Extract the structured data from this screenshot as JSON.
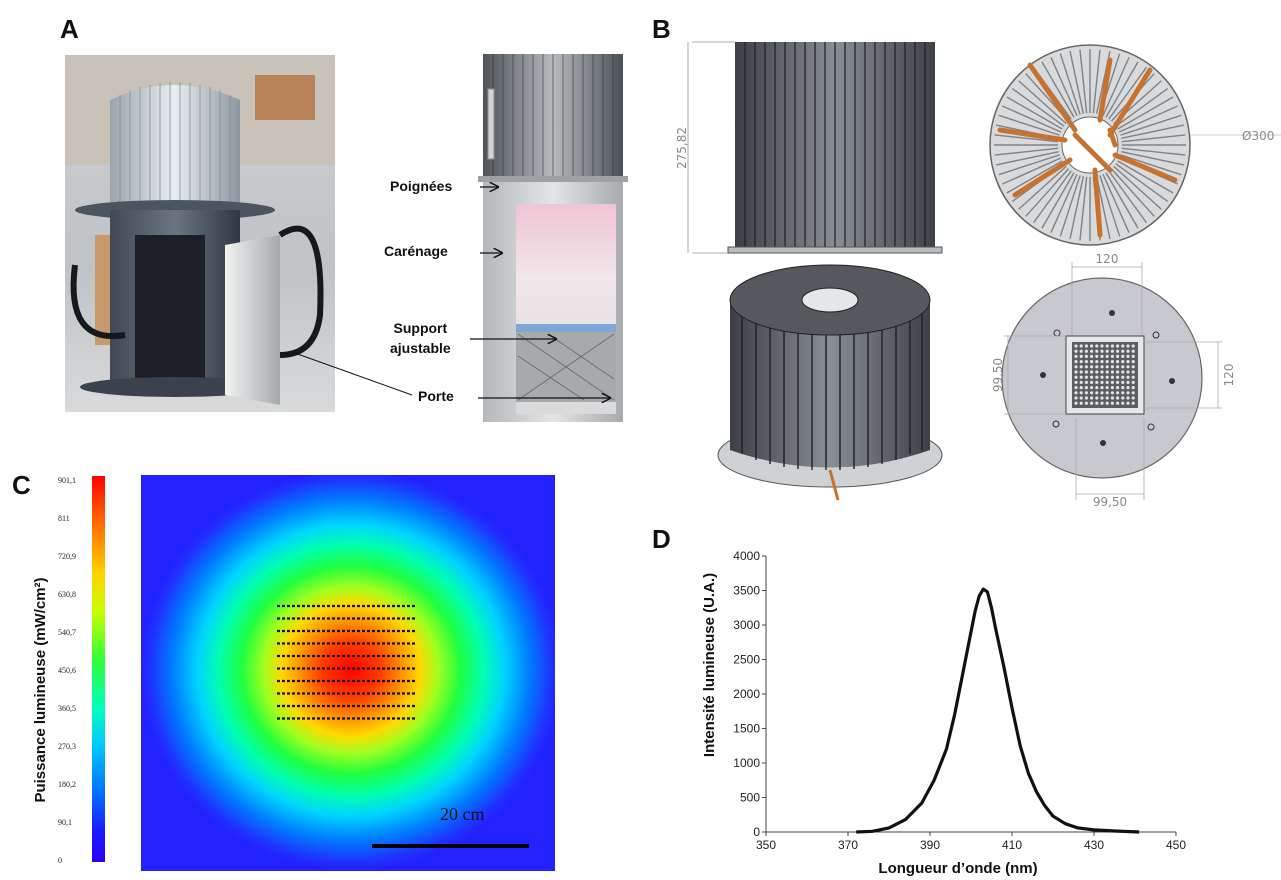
{
  "panels": {
    "a": "A",
    "b": "B",
    "c": "C",
    "d": "D"
  },
  "panel_a": {
    "labels": {
      "handles": "Poignées",
      "housing": "Carénage",
      "support_line1": "Support",
      "support_line2": "ajustable",
      "door": "Porte"
    }
  },
  "panel_b": {
    "dimensions": {
      "height": "275,82",
      "diameter": "Ø300",
      "plate_width_top": "120",
      "plate_height_right": "120",
      "array_height_left": "99,50",
      "array_width_bottom": "99,50"
    }
  },
  "panel_c": {
    "colorbar_title": "Puissance lumineuse (mW/cm²)",
    "colorbar_ticks": [
      "901,1",
      "811",
      "720,9",
      "630,8",
      "540,7",
      "450,6",
      "360,5",
      "270,3",
      "180,2",
      "90,1",
      "0"
    ],
    "scale_bar_label": "20 cm",
    "colors": {
      "low": "#1a1aff",
      "mid": "#22dd44",
      "high": "#ff1a00"
    }
  },
  "chart_data": {
    "type": "line",
    "xlabel": "Longueur d’onde (nm)",
    "ylabel": "Intensité lumineuse (U.A.)",
    "xlim": [
      350,
      450
    ],
    "ylim": [
      0,
      4000
    ],
    "xticks": [
      350,
      370,
      390,
      410,
      430,
      450
    ],
    "yticks": [
      0,
      500,
      1000,
      1500,
      2000,
      2500,
      3000,
      3500,
      4000
    ],
    "grid": false,
    "series": [
      {
        "x": [
          372,
          376,
          380,
          384,
          388,
          391,
          394,
          396,
          398,
          400,
          401,
          402,
          403,
          404,
          405,
          406,
          408,
          410,
          412,
          414,
          416,
          418,
          420,
          423,
          426,
          430,
          435,
          441
        ],
        "y": [
          0,
          10,
          60,
          180,
          420,
          750,
          1200,
          1700,
          2300,
          2900,
          3200,
          3420,
          3520,
          3480,
          3250,
          2950,
          2400,
          1800,
          1250,
          850,
          580,
          380,
          230,
          120,
          60,
          30,
          15,
          0
        ]
      }
    ]
  }
}
